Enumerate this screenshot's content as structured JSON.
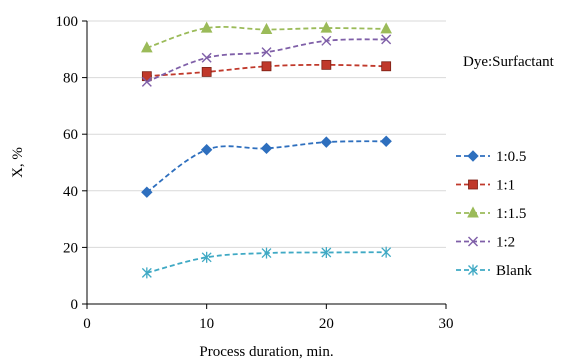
{
  "chart_data": {
    "type": "line",
    "xlabel": "Process duration, min.",
    "ylabel": "X, %",
    "xlim": [
      0,
      30
    ],
    "ylim": [
      0,
      100
    ],
    "xticks": [
      "0",
      "10",
      "20",
      "30"
    ],
    "yticks": [
      "0",
      "20",
      "40",
      "60",
      "80",
      "100"
    ],
    "grid": "horizontal",
    "legend_title": "Dye:Surfactant",
    "legend_position": "right",
    "x": [
      5,
      10,
      15,
      20,
      25
    ],
    "series": [
      {
        "name": "1:0.5",
        "values": [
          39.5,
          54.5,
          55.0,
          57.2,
          57.5
        ],
        "color": "#2e6fbe",
        "marker": "diamond"
      },
      {
        "name": "1:1",
        "values": [
          80.5,
          82.0,
          84.0,
          84.5,
          84.0
        ],
        "color": "#c0392b",
        "marker": "square"
      },
      {
        "name": "1:1.5",
        "values": [
          90.5,
          97.5,
          97.0,
          97.5,
          97.2
        ],
        "color": "#9bbb59",
        "marker": "triangle"
      },
      {
        "name": "1:2",
        "values": [
          78.5,
          87.0,
          89.0,
          93.0,
          93.5
        ],
        "color": "#7f5fa8",
        "marker": "x"
      },
      {
        "name": "Blank",
        "values": [
          11.0,
          16.5,
          18.0,
          18.2,
          18.3
        ],
        "color": "#3fa9c4",
        "marker": "star"
      }
    ]
  }
}
